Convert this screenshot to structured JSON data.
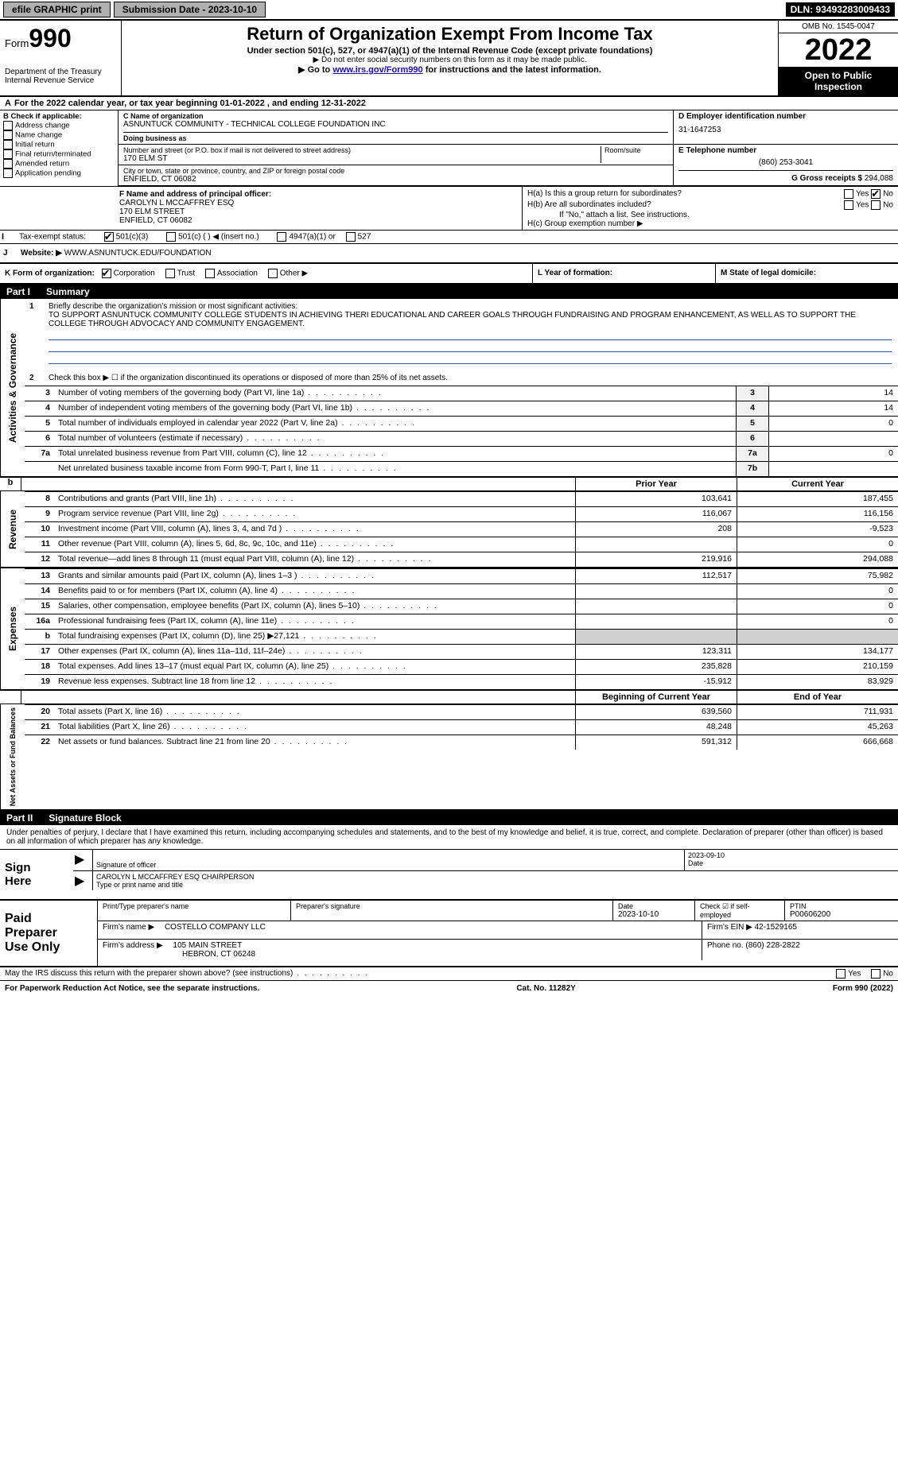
{
  "top": {
    "efile": "efile GRAPHIC print",
    "submission_label": "Submission Date - 2023-10-10",
    "dln": "DLN: 93493283009433"
  },
  "header": {
    "form_prefix": "Form",
    "form_number": "990",
    "dept": "Department of the Treasury",
    "irs": "Internal Revenue Service",
    "title": "Return of Organization Exempt From Income Tax",
    "sub1": "Under section 501(c), 527, or 4947(a)(1) of the Internal Revenue Code (except private foundations)",
    "sub2": "▶ Do not enter social security numbers on this form as it may be made public.",
    "sub3_pre": "▶ Go to ",
    "sub3_link": "www.irs.gov/Form990",
    "sub3_post": " for instructions and the latest information.",
    "omb": "OMB No. 1545-0047",
    "year": "2022",
    "open": "Open to Public Inspection"
  },
  "period": {
    "text": "For the 2022 calendar year, or tax year beginning 01-01-2022   , and ending 12-31-2022"
  },
  "blockB": {
    "label": "B Check if applicable:",
    "items": [
      "Address change",
      "Name change",
      "Initial return",
      "Final return/terminated",
      "Amended return",
      "Application pending"
    ]
  },
  "blockC": {
    "name_label": "C Name of organization",
    "name": "ASNUNTUCK COMMUNITY - TECHNICAL COLLEGE FOUNDATION INC",
    "dba_label": "Doing business as",
    "dba": "",
    "addr_label": "Number and street (or P.O. box if mail is not delivered to street address)",
    "room_label": "Room/suite",
    "addr": "170 ELM ST",
    "city_label": "City or town, state or province, country, and ZIP or foreign postal code",
    "city": "ENFIELD, CT  06082"
  },
  "blockD": {
    "label": "D Employer identification number",
    "value": "31-1647253"
  },
  "blockE": {
    "label": "E Telephone number",
    "value": "(860) 253-3041"
  },
  "blockG": {
    "label": "G Gross receipts $",
    "value": "294,088"
  },
  "blockF": {
    "label": "F Name and address of principal officer:",
    "name": "CAROLYN L MCCAFFREY ESQ",
    "addr1": "170 ELM STREET",
    "addr2": "ENFIELD, CT  06082"
  },
  "blockH": {
    "a_label": "H(a)  Is this a group return for subordinates?",
    "a_yes": "Yes",
    "a_no": "No",
    "b_label": "H(b)  Are all subordinates included?",
    "b_note": "If \"No,\" attach a list. See instructions.",
    "c_label": "H(c)  Group exemption number ▶"
  },
  "blockI": {
    "label": "Tax-exempt status:",
    "opt1": "501(c)(3)",
    "opt2": "501(c) (   ) ◀ (insert no.)",
    "opt3": "4947(a)(1) or",
    "opt4": "527"
  },
  "blockJ": {
    "label": "Website: ▶",
    "value": "WWW.ASNUNTUCK.EDU/FOUNDATION"
  },
  "blockK": {
    "label": "K Form of organization:",
    "opts": [
      "Corporation",
      "Trust",
      "Association",
      "Other ▶"
    ]
  },
  "blockL": {
    "label": "L Year of formation:"
  },
  "blockM": {
    "label": "M State of legal domicile:"
  },
  "part1": {
    "header": "Part I",
    "title": "Summary",
    "mission_label": "Briefly describe the organization's mission or most significant activities:",
    "mission": "TO SUPPORT ASNUNTUCK COMMUNITY COLLEGE STUDENTS IN ACHIEVING THERI EDUCATIONAL AND CAREER GOALS THROUGH FUNDRAISING AND PROGRAM ENHANCEMENT, AS WELL AS TO SUPPORT THE COLLEGE THROUGH ADVOCACY AND COMMUNITY ENGAGEMENT.",
    "line2": "Check this box ▶ ☐  if the organization discontinued its operations or disposed of more than 25% of its net assets.",
    "governance_rows": [
      {
        "n": "3",
        "label": "Number of voting members of the governing body (Part VI, line 1a)",
        "box": "3",
        "val": "14"
      },
      {
        "n": "4",
        "label": "Number of independent voting members of the governing body (Part VI, line 1b)",
        "box": "4",
        "val": "14"
      },
      {
        "n": "5",
        "label": "Total number of individuals employed in calendar year 2022 (Part V, line 2a)",
        "box": "5",
        "val": "0"
      },
      {
        "n": "6",
        "label": "Total number of volunteers (estimate if necessary)",
        "box": "6",
        "val": ""
      },
      {
        "n": "7a",
        "label": "Total unrelated business revenue from Part VIII, column (C), line 12",
        "box": "7a",
        "val": "0"
      },
      {
        "n": "",
        "label": "Net unrelated business taxable income from Form 990-T, Part I, line 11",
        "box": "7b",
        "val": ""
      }
    ],
    "col_prior": "Prior Year",
    "col_curr": "Current Year",
    "revenue_rows": [
      {
        "n": "8",
        "label": "Contributions and grants (Part VIII, line 1h)",
        "p": "103,641",
        "c": "187,455"
      },
      {
        "n": "9",
        "label": "Program service revenue (Part VIII, line 2g)",
        "p": "116,067",
        "c": "116,156"
      },
      {
        "n": "10",
        "label": "Investment income (Part VIII, column (A), lines 3, 4, and 7d )",
        "p": "208",
        "c": "-9,523"
      },
      {
        "n": "11",
        "label": "Other revenue (Part VIII, column (A), lines 5, 6d, 8c, 9c, 10c, and 11e)",
        "p": "",
        "c": "0"
      },
      {
        "n": "12",
        "label": "Total revenue—add lines 8 through 11 (must equal Part VIII, column (A), line 12)",
        "p": "219,916",
        "c": "294,088"
      }
    ],
    "expense_rows": [
      {
        "n": "13",
        "label": "Grants and similar amounts paid (Part IX, column (A), lines 1–3 )",
        "p": "112,517",
        "c": "75,982"
      },
      {
        "n": "14",
        "label": "Benefits paid to or for members (Part IX, column (A), line 4)",
        "p": "",
        "c": "0"
      },
      {
        "n": "15",
        "label": "Salaries, other compensation, employee benefits (Part IX, column (A), lines 5–10)",
        "p": "",
        "c": "0"
      },
      {
        "n": "16a",
        "label": "Professional fundraising fees (Part IX, column (A), line 11e)",
        "p": "",
        "c": "0"
      },
      {
        "n": "b",
        "label": "Total fundraising expenses (Part IX, column (D), line 25) ▶27,121",
        "p": "",
        "c": "",
        "shaded": true
      },
      {
        "n": "17",
        "label": "Other expenses (Part IX, column (A), lines 11a–11d, 11f–24e)",
        "p": "123,311",
        "c": "134,177"
      },
      {
        "n": "18",
        "label": "Total expenses. Add lines 13–17 (must equal Part IX, column (A), line 25)",
        "p": "235,828",
        "c": "210,159"
      },
      {
        "n": "19",
        "label": "Revenue less expenses. Subtract line 18 from line 12",
        "p": "-15,912",
        "c": "83,929"
      }
    ],
    "col_begin": "Beginning of Current Year",
    "col_end": "End of Year",
    "net_rows": [
      {
        "n": "20",
        "label": "Total assets (Part X, line 16)",
        "p": "639,560",
        "c": "711,931"
      },
      {
        "n": "21",
        "label": "Total liabilities (Part X, line 26)",
        "p": "48,248",
        "c": "45,263"
      },
      {
        "n": "22",
        "label": "Net assets or fund balances. Subtract line 21 from line 20",
        "p": "591,312",
        "c": "666,668"
      }
    ]
  },
  "part2": {
    "header": "Part II",
    "title": "Signature Block",
    "decl": "Under penalties of perjury, I declare that I have examined this return, including accompanying schedules and statements, and to the best of my knowledge and belief, it is true, correct, and complete. Declaration of preparer (other than officer) is based on all information of which preparer has any knowledge."
  },
  "sign": {
    "left1": "Sign",
    "left2": "Here",
    "sig_label": "Signature of officer",
    "date": "2023-09-10",
    "date_label": "Date",
    "name": "CAROLYN L MCCAFFREY ESQ  CHAIRPERSON",
    "name_label": "Type or print name and title"
  },
  "prep": {
    "left1": "Paid",
    "left2": "Preparer",
    "left3": "Use Only",
    "r1": {
      "c1_label": "Print/Type preparer's name",
      "c2_label": "Preparer's signature",
      "c3_label": "Date",
      "c3_val": "2023-10-10",
      "c4_label": "Check ☑ if self-employed",
      "c5_label": "PTIN",
      "c5_val": "P00606200"
    },
    "r2": {
      "firm_label": "Firm's name    ▶",
      "firm": "COSTELLO COMPANY LLC",
      "ein_label": "Firm's EIN ▶",
      "ein": "42-1529165"
    },
    "r3": {
      "addr_label": "Firm's address ▶",
      "addr1": "105 MAIN STREET",
      "addr2": "HEBRON, CT  06248",
      "phone_label": "Phone no.",
      "phone": "(860) 228-2822"
    }
  },
  "footer": {
    "discuss": "May the IRS discuss this return with the preparer shown above? (see instructions)",
    "yes": "Yes",
    "no": "No",
    "paperwork": "For Paperwork Reduction Act Notice, see the separate instructions.",
    "cat": "Cat. No. 11282Y",
    "form": "Form 990 (2022)"
  },
  "sides": {
    "gov": "Activities & Governance",
    "rev": "Revenue",
    "exp": "Expenses",
    "net": "Net Assets or Fund Balances"
  }
}
